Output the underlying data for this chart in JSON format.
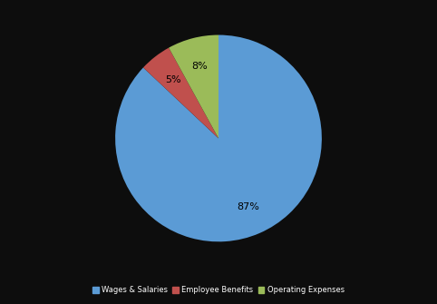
{
  "labels": [
    "Wages & Salaries",
    "Employee Benefits",
    "Operating Expenses"
  ],
  "values": [
    87,
    5,
    8
  ],
  "colors": [
    "#5B9BD5",
    "#C0504D",
    "#9BBB59"
  ],
  "legend_labels": [
    "Wages & Salaries",
    "Employee Benefits",
    "Operating Expenses"
  ],
  "startangle": 90,
  "background_color": "#0d0d0d",
  "text_color": "#000000",
  "font_size": 8,
  "legend_fontsize": 6,
  "counterclock": false
}
